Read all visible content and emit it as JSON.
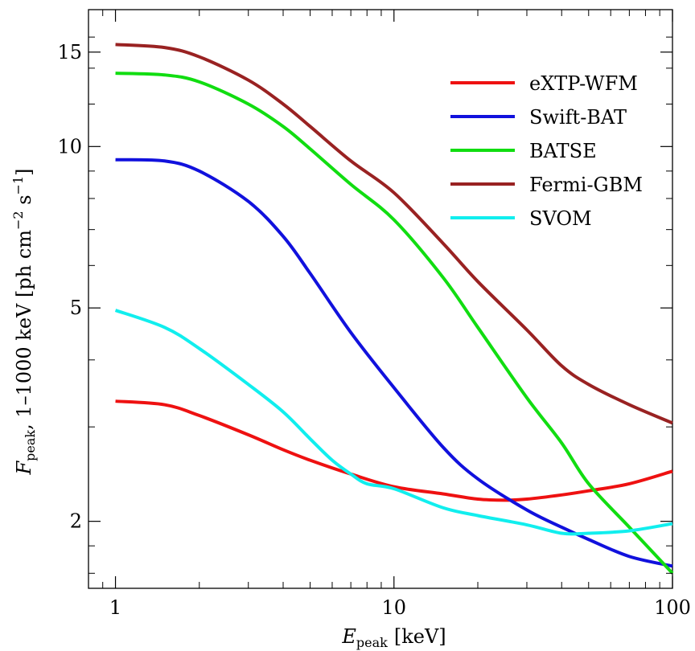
{
  "chart_data": {
    "type": "line",
    "x_scale": "log",
    "y_scale": "log",
    "xlim": [
      0.8,
      100
    ],
    "ylim": [
      1.5,
      18
    ],
    "xlabel_main": "E",
    "xlabel_sub": "peak",
    "xlabel_unit": "[keV]",
    "ylabel_main": "F",
    "ylabel_sub": "peak",
    "ylabel_mid": ", 1–1000 keV [ph cm",
    "ylabel_sup1": "−2",
    "ylabel_s": " s",
    "ylabel_sup2": "−1",
    "ylabel_end": "]",
    "x_ticks": [
      {
        "value": 1,
        "label": "1"
      },
      {
        "value": 10,
        "label": "10"
      },
      {
        "value": 100,
        "label": "100"
      }
    ],
    "y_ticks": [
      {
        "value": 2,
        "label": "2"
      },
      {
        "value": 5,
        "label": "5"
      },
      {
        "value": 10,
        "label": "10"
      },
      {
        "value": 15,
        "label": "15"
      }
    ],
    "legend_position": "top-right",
    "series": [
      {
        "name": "eXTP-WFM",
        "color": "#ee1111",
        "points": [
          [
            1,
            3.35
          ],
          [
            1.5,
            3.3
          ],
          [
            2,
            3.15
          ],
          [
            3,
            2.9
          ],
          [
            4,
            2.72
          ],
          [
            5,
            2.6
          ],
          [
            7,
            2.45
          ],
          [
            10,
            2.32
          ],
          [
            15,
            2.25
          ],
          [
            20,
            2.2
          ],
          [
            25,
            2.19
          ],
          [
            30,
            2.2
          ],
          [
            40,
            2.24
          ],
          [
            50,
            2.28
          ],
          [
            70,
            2.35
          ],
          [
            100,
            2.48
          ]
        ]
      },
      {
        "name": "Swift-BAT",
        "color": "#1111dd",
        "points": [
          [
            1,
            9.45
          ],
          [
            1.5,
            9.4
          ],
          [
            2,
            9.0
          ],
          [
            3,
            7.9
          ],
          [
            4,
            6.8
          ],
          [
            5,
            5.8
          ],
          [
            7,
            4.5
          ],
          [
            10,
            3.55
          ],
          [
            15,
            2.75
          ],
          [
            20,
            2.4
          ],
          [
            30,
            2.1
          ],
          [
            40,
            1.95
          ],
          [
            50,
            1.85
          ],
          [
            70,
            1.72
          ],
          [
            100,
            1.65
          ]
        ]
      },
      {
        "name": "BATSE",
        "color": "#11dd11",
        "points": [
          [
            1,
            13.7
          ],
          [
            1.5,
            13.6
          ],
          [
            2,
            13.2
          ],
          [
            3,
            12.0
          ],
          [
            4,
            10.9
          ],
          [
            5,
            9.9
          ],
          [
            7,
            8.5
          ],
          [
            10,
            7.3
          ],
          [
            15,
            5.7
          ],
          [
            20,
            4.6
          ],
          [
            30,
            3.4
          ],
          [
            40,
            2.8
          ],
          [
            50,
            2.35
          ],
          [
            70,
            1.95
          ],
          [
            100,
            1.6
          ]
        ]
      },
      {
        "name": "Fermi-GBM",
        "color": "#992222",
        "points": [
          [
            1,
            15.5
          ],
          [
            1.5,
            15.3
          ],
          [
            2,
            14.7
          ],
          [
            3,
            13.3
          ],
          [
            4,
            12.0
          ],
          [
            5,
            10.9
          ],
          [
            7,
            9.4
          ],
          [
            10,
            8.2
          ],
          [
            15,
            6.6
          ],
          [
            20,
            5.6
          ],
          [
            30,
            4.55
          ],
          [
            40,
            3.9
          ],
          [
            50,
            3.6
          ],
          [
            70,
            3.3
          ],
          [
            100,
            3.05
          ]
        ]
      },
      {
        "name": "SVOM",
        "color": "#11eeee",
        "points": [
          [
            1,
            4.95
          ],
          [
            1.5,
            4.6
          ],
          [
            2,
            4.2
          ],
          [
            3,
            3.6
          ],
          [
            4,
            3.2
          ],
          [
            5,
            2.85
          ],
          [
            6,
            2.6
          ],
          [
            7,
            2.45
          ],
          [
            8,
            2.35
          ],
          [
            10,
            2.3
          ],
          [
            15,
            2.12
          ],
          [
            20,
            2.05
          ],
          [
            30,
            1.97
          ],
          [
            40,
            1.9
          ],
          [
            50,
            1.9
          ],
          [
            70,
            1.92
          ],
          [
            100,
            1.98
          ]
        ]
      }
    ]
  }
}
